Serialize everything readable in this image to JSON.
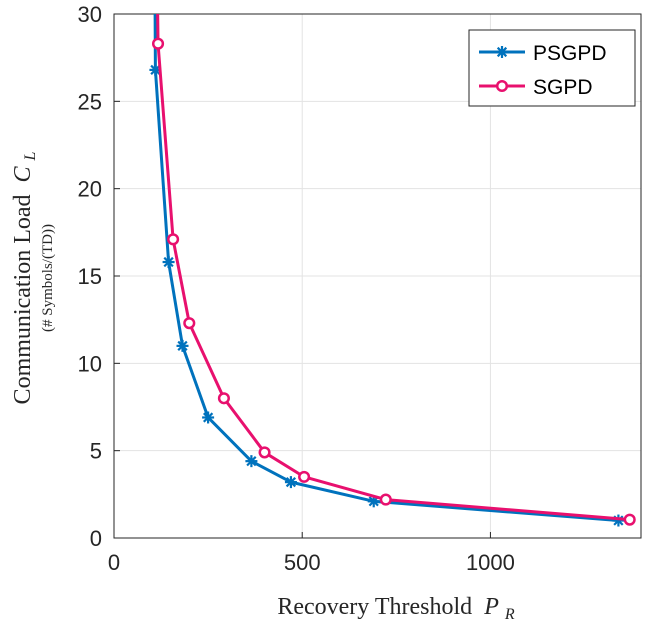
{
  "chart_data": {
    "type": "line",
    "title": "",
    "xlabel": "Recovery Threshold P_R",
    "ylabel": "Communication Load C_L",
    "ylabel_sub": "(# Symbols/(TD))",
    "xlim": [
      0,
      1400
    ],
    "ylim": [
      0,
      30
    ],
    "xticks": [
      0,
      500,
      1000
    ],
    "yticks": [
      0,
      5,
      10,
      15,
      20,
      25,
      30
    ],
    "grid": true,
    "legend_position": "top-right",
    "series": [
      {
        "name": "PSGPD",
        "color": "#0072BD",
        "marker": "asterisk",
        "points": [
          [
            108,
            35
          ],
          [
            110,
            26.8
          ],
          [
            145,
            15.8
          ],
          [
            182,
            11.0
          ],
          [
            250,
            6.9
          ],
          [
            365,
            4.4
          ],
          [
            470,
            3.2
          ],
          [
            690,
            2.1
          ],
          [
            1340,
            1.0
          ]
        ],
        "marked_from": 1
      },
      {
        "name": "SGPD",
        "color": "#E8106E",
        "marker": "circle",
        "points": [
          [
            113,
            35
          ],
          [
            117,
            28.3
          ],
          [
            157,
            17.1
          ],
          [
            200,
            12.3
          ],
          [
            292,
            8.0
          ],
          [
            400,
            4.9
          ],
          [
            505,
            3.5
          ],
          [
            722,
            2.2
          ],
          [
            1370,
            1.05
          ]
        ],
        "marked_from": 1
      }
    ]
  },
  "axes": {
    "x_title_main": "Recovery Threshold",
    "x_title_var": "P",
    "x_title_sub": "R",
    "y_title_main": "Communication Load",
    "y_title_var": "C",
    "y_title_sub": "L",
    "y_title_second": "(# Symbols/(TD))"
  }
}
